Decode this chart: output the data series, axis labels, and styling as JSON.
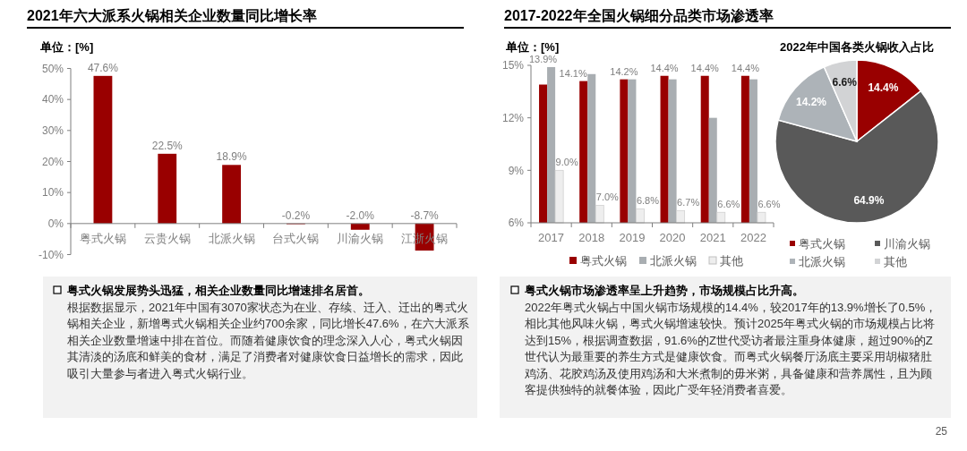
{
  "chart_data": [
    {
      "type": "bar",
      "title": "2021年六大派系火锅相关企业数量同比增长率",
      "ylabel": "单位：[%]",
      "categories": [
        "粤式火锅",
        "云贵火锅",
        "北派火锅",
        "台式火锅",
        "川渝火锅",
        "江浙火锅"
      ],
      "values": [
        47.6,
        22.5,
        18.9,
        -0.2,
        -2.0,
        -8.7
      ],
      "color": "#990000",
      "value_labels": [
        "47.6%",
        "22.5%",
        "18.9%",
        "-0.2%",
        "-2.0%",
        "-8.7%"
      ],
      "ylim": [
        -10,
        50
      ],
      "yticks": [
        {
          "value": -10,
          "label": "-10%"
        },
        {
          "value": 0,
          "label": "0%"
        },
        {
          "value": 10,
          "label": "10%"
        },
        {
          "value": 20,
          "label": "20%"
        },
        {
          "value": 30,
          "label": "30%"
        },
        {
          "value": 40,
          "label": "40%"
        },
        {
          "value": 50,
          "label": "50%"
        }
      ],
      "annotations": [
        "粤式火锅发展势头迅猛，相关企业数量同比增速排名居首。",
        "根据数据显示，2021年中国有3070家状态为在业、存续、迁入、迁出的粤式火锅相关企业，新增粤式火锅相关企业约700余家，同比增长47.6%，在六大派系相关企业数量增速中排在首位。而随着健康饮食的理念深入人心，粤式火锅因其清淡的汤底和鲜美的食材，满足了消费者对健康饮食日益增长的需求，因此吸引大量参与者进入粤式火锅行业。"
      ]
    },
    {
      "type": "bar",
      "title": "2017-2022年全国火锅细分品类市场渗透率",
      "ylabel": "单位：[%]",
      "categories": [
        "2017",
        "2018",
        "2019",
        "2020",
        "2021",
        "2022"
      ],
      "series": [
        {
          "name": "粤式火锅",
          "color": "#990000",
          "values": [
            13.9,
            14.1,
            14.2,
            14.4,
            14.4,
            14.4
          ],
          "value_labels": [
            "13.9%",
            "14.1%",
            "14.2%",
            "14.4%",
            "14.4%",
            "14.4%"
          ]
        },
        {
          "name": "北派火锅",
          "color": "#a9aeb2",
          "values": [
            14.9,
            14.5,
            14.2,
            14.2,
            12.0,
            14.2
          ]
        },
        {
          "name": "其他",
          "color": "#eeeeee",
          "values": [
            9.0,
            7.0,
            6.8,
            6.7,
            6.6,
            6.6
          ],
          "value_labels": [
            "9.0%",
            "7.0%",
            "6.8%",
            "6.7%",
            "6.6%",
            "6.6%"
          ]
        }
      ],
      "ylim": [
        6,
        15
      ],
      "yticks": [
        {
          "value": 6,
          "label": "6%"
        },
        {
          "value": 9,
          "label": "9%"
        },
        {
          "value": 12,
          "label": "12%"
        },
        {
          "value": 15,
          "label": "15%"
        }
      ],
      "legend": "bottom",
      "annotations": [
        "粤式火锅市场渗透率呈上升趋势，市场规模占比升高。",
        "2022年粤式火锅占中国火锅市场规模的14.4%，较2017年的13.9%增长了0.5%，相比其他风味火锅，粤式火锅增速较快。预计2025年粤式火锅的市场规模占比将达到15%，根据调查数据，91.6%的Z世代受访者最注重身体健康，超过90%的Z世代认为最重要的养生方式是健康饮食。而粤式火锅餐厅汤底主要采用胡椒猪肚鸡汤、花胶鸡汤及使用鸡汤和大米煮制的毋米粥，具备健康和营养属性，且为顾客提供独特的就餐体验，因此广受年轻消费者喜爱。"
      ]
    },
    {
      "type": "pie",
      "title": "2022年中国各类火锅收入占比",
      "categories": [
        "粤式火锅",
        "川渝火锅",
        "北派火锅",
        "其他"
      ],
      "values": [
        14.4,
        64.9,
        14.2,
        6.6
      ],
      "colors": [
        "#990000",
        "#595959",
        "#adb3b8",
        "#d2d3d5"
      ],
      "value_labels": [
        "14.4%",
        "64.9%",
        "14.2%",
        "6.6%"
      ],
      "legend": "bottom",
      "annotations": [
        "25"
      ]
    }
  ]
}
